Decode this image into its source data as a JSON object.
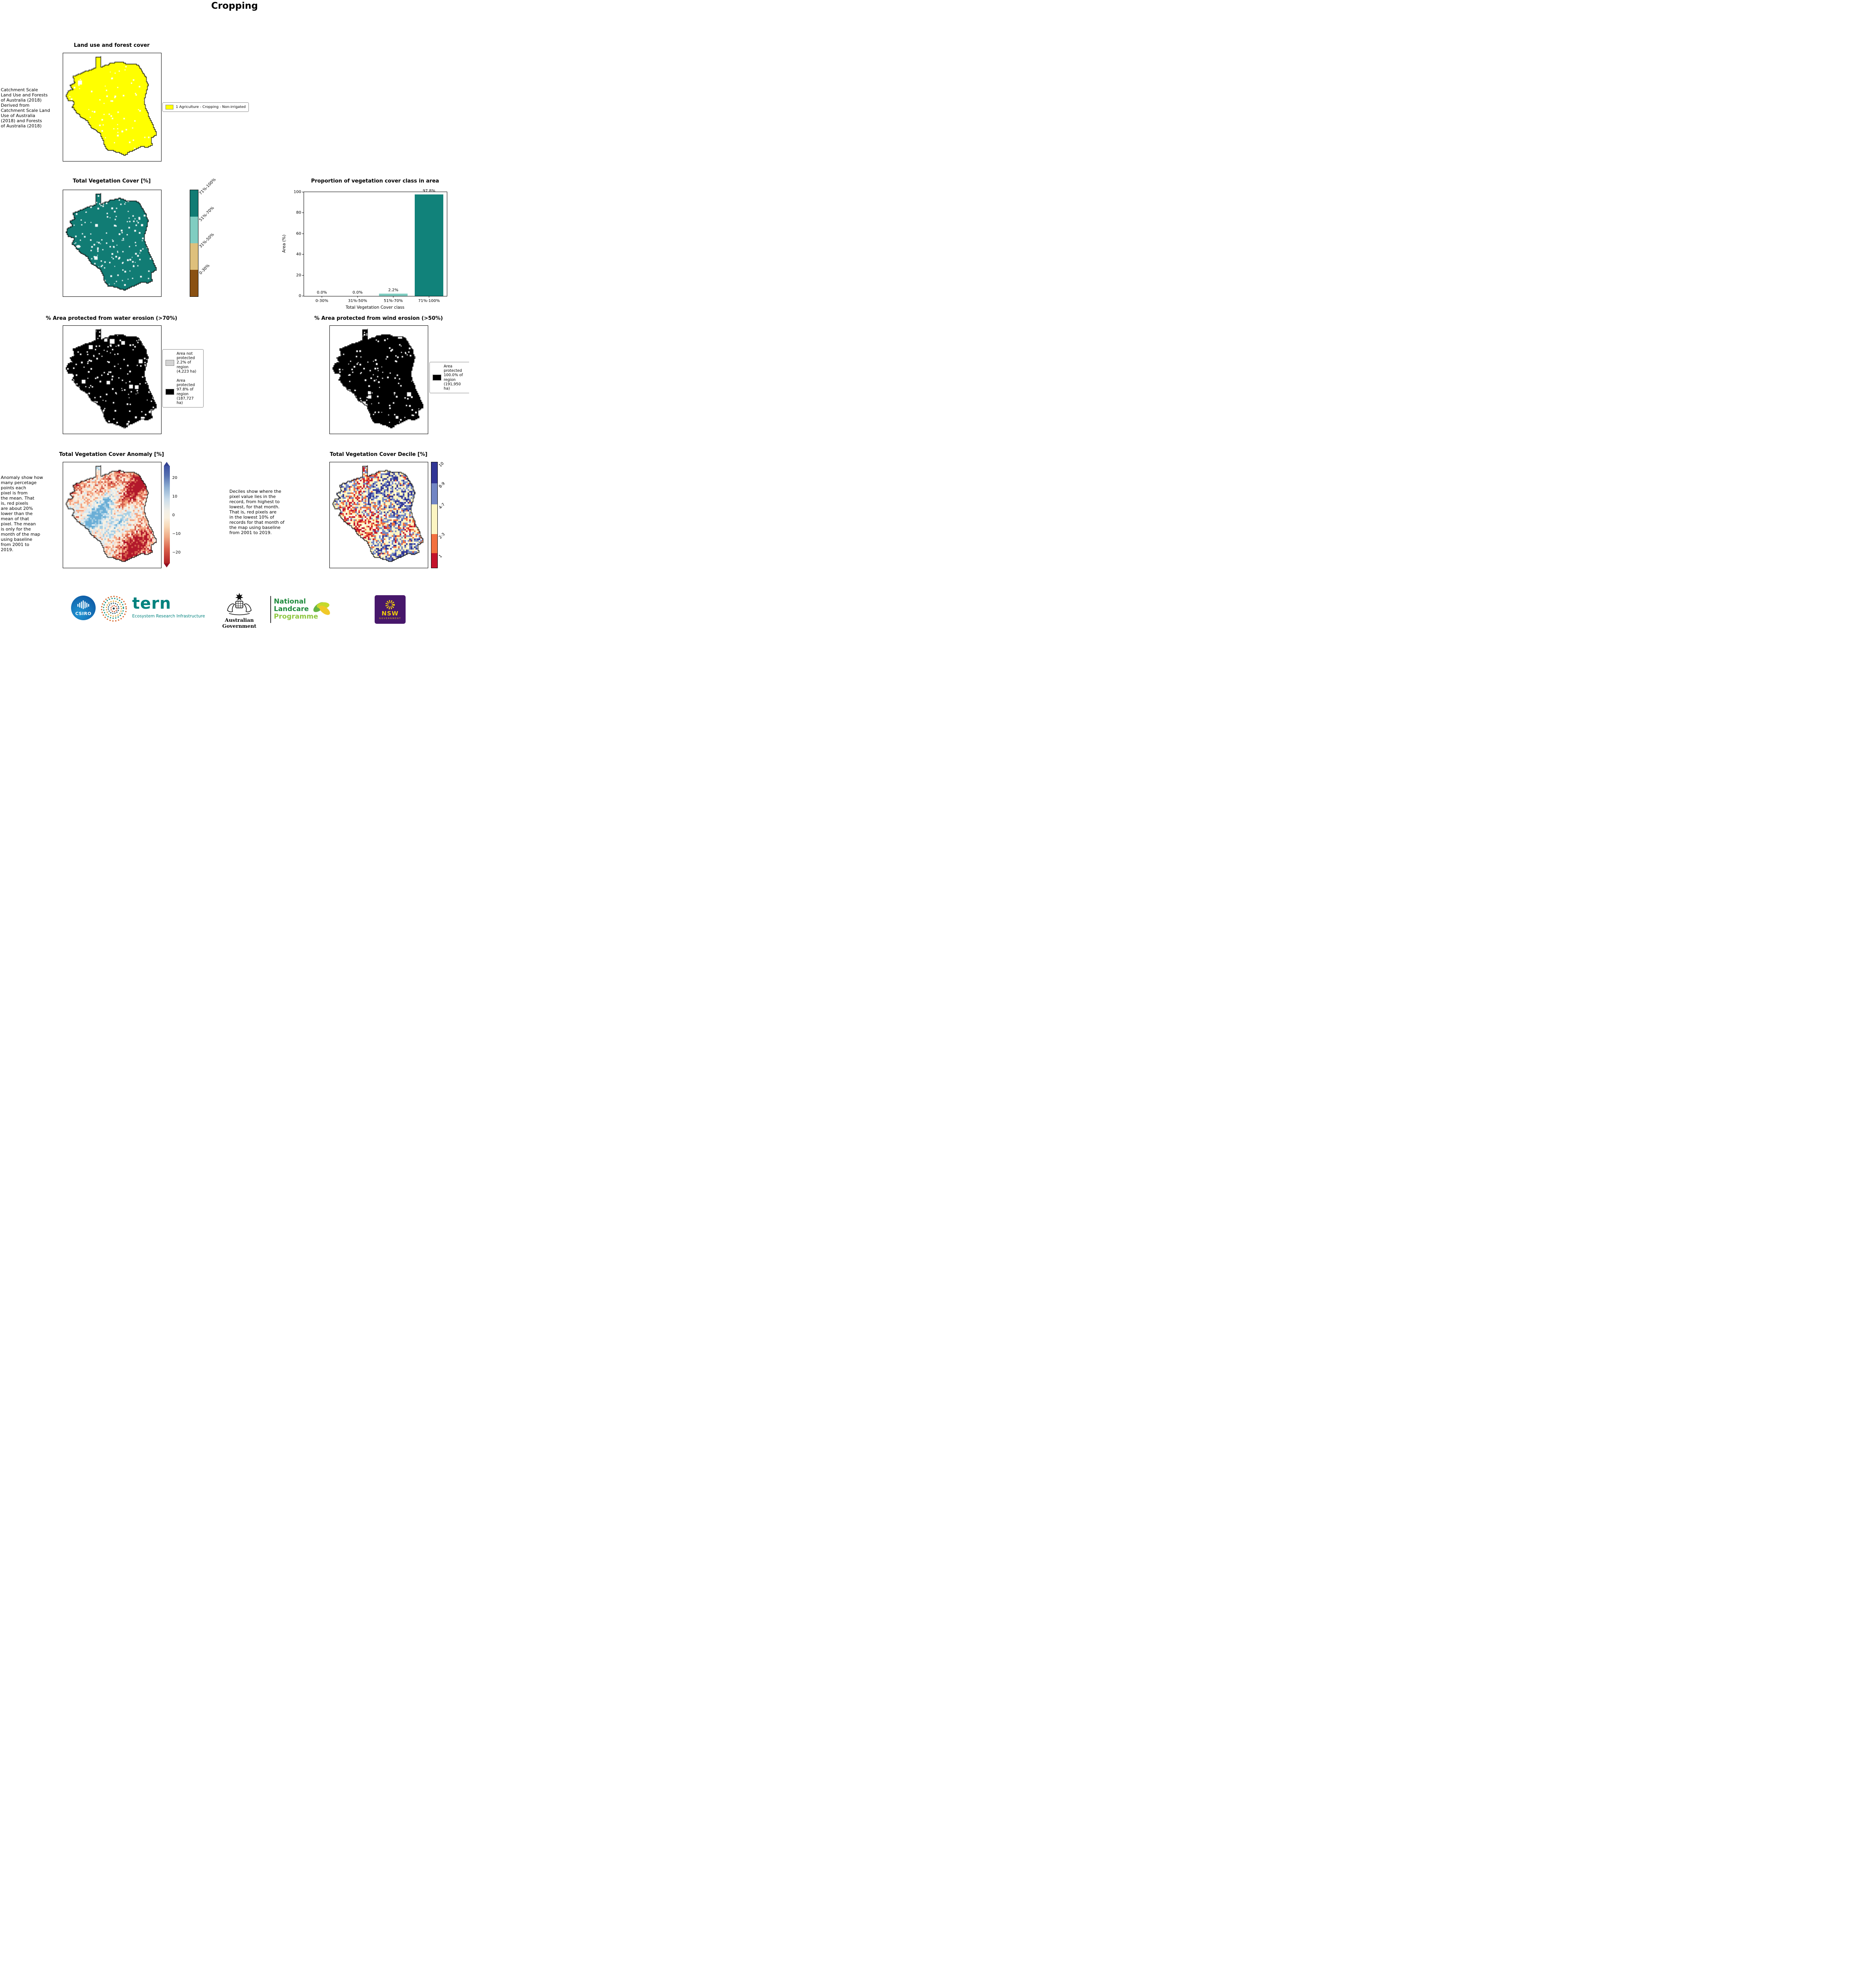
{
  "page_title": "Cropping",
  "panels": {
    "landuse": {
      "title": "Land use and forest cover",
      "side_note": "Catchment Scale\nLand Use and Forests\nof Australia (2018)\nDerived from\nCatchment Scale Land\nUse of Australia\n(2018) and Forests\nof Australia (2018)",
      "map_color": "#ffff00",
      "legend": [
        {
          "label": "1 Agriculture - Cropping - Non-irrigated",
          "color": "#ffff00"
        }
      ]
    },
    "vegcover": {
      "title": "Total Vegetation Cover [%]",
      "map_color": "#117c74",
      "colorbar": [
        {
          "label": "71%-100%",
          "color": "#117c74"
        },
        {
          "label": "51%-70%",
          "color": "#80cdc1"
        },
        {
          "label": "31%-50%",
          "color": "#dec07c"
        },
        {
          "label": "0-30%",
          "color": "#8a5113"
        }
      ],
      "fractions": [
        0.25,
        0.25,
        0.25,
        0.25
      ]
    },
    "water": {
      "title": "% Area protected from water erosion (>70%)",
      "map_color": "#000000",
      "legend": [
        {
          "label": "Area not\nprotected\n2.2% of\nregion\n(4,223 ha)",
          "color": "#d3d3d3"
        },
        {
          "label": "Area\nprotected\n97.8% of\nregion\n(187,727\nha)",
          "color": "#000000"
        }
      ]
    },
    "wind": {
      "title": "% Area protected from wind erosion (>50%)",
      "map_color": "#000000",
      "legend": [
        {
          "label": "Area\nprotected\n100.0% of\nregion\n(191,950\nha)",
          "color": "#000000"
        }
      ]
    },
    "anomaly": {
      "title": "Total Vegetation Cover Anomaly [%]",
      "side_note": "Anomaly show how\nmany percetage\npoints each\npixel is from\nthe mean. That\nis, red pixels\nare about 20%\nlower than the\nmean of that\npixel. The mean\nis only for the\nmonth of the map\nusing baseline\nfrom 2001 to\n2019.",
      "colorbar_ticks": [
        "20",
        "10",
        "0",
        "−10",
        "−20"
      ]
    },
    "decile": {
      "title": "Total Vegetation Cover Decile [%]",
      "side_note": "Deciles show where the\npixel value lies in the\nrecord, from highest to\nlowest, for that month.\nThat is, red pixels are\nin the lowest 10% of\nrecords for that month of\nthe map using baseline\nfrom 2001 to 2019.",
      "colorbar": [
        {
          "label": "10",
          "color": "#313695"
        },
        {
          "label": "8-9",
          "color": "#7286c4"
        },
        {
          "label": "4-7",
          "color": "#fdf5c2"
        },
        {
          "label": "2-3",
          "color": "#f2703e"
        },
        {
          "label": "1",
          "color": "#c3132b"
        }
      ],
      "fractions": [
        0.2,
        0.2,
        0.28,
        0.18,
        0.14
      ]
    }
  },
  "chart_data": {
    "type": "bar",
    "title": "Proportion of vegetation cover class in area",
    "categories": [
      "0-30%",
      "31%-50%",
      "51%-70%",
      "71%-100%"
    ],
    "values": [
      0.0,
      0.0,
      2.2,
      97.8
    ],
    "value_labels": [
      "0.0%",
      "0.0%",
      "2.2%",
      "97.8%"
    ],
    "bar_colors": [
      "#8a5113",
      "#dec07c",
      "#80cdc1",
      "#11827a"
    ],
    "xlabel": "Total Vegetation Cover class",
    "ylabel": "Area (%)",
    "ylim": [
      0,
      100
    ],
    "yticks": [
      0,
      20,
      40,
      60,
      80,
      100
    ],
    "ytick_labels": [
      "0",
      "20",
      "40",
      "60",
      "80",
      "100"
    ],
    "grid": false,
    "legend_position": "none"
  },
  "footer": {
    "csiro": "CSIRO",
    "tern": "tern",
    "tern_sub": "Ecosystem Research Infrastructure",
    "aus_gov": "Australian Government",
    "landcare_1": "National",
    "landcare_2": "Landcare",
    "landcare_3": "Programme",
    "nsw": "NSW",
    "nsw_sub": "GOVERNMENT"
  }
}
